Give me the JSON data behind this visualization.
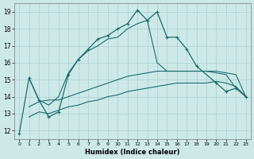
{
  "xlabel": "Humidex (Indice chaleur)",
  "xlim": [
    -0.5,
    23.5
  ],
  "ylim": [
    11.5,
    19.5
  ],
  "yticks": [
    12,
    13,
    14,
    15,
    16,
    17,
    18,
    19
  ],
  "xticks": [
    0,
    1,
    2,
    3,
    4,
    5,
    6,
    7,
    8,
    9,
    10,
    11,
    12,
    13,
    14,
    15,
    16,
    17,
    18,
    19,
    20,
    21,
    22,
    23
  ],
  "bg_color": "#cce9e8",
  "grid_color": "#aacfcf",
  "line_color": "#1a6b6b",
  "line1_x": [
    0,
    1,
    2,
    3,
    4,
    5,
    6,
    7,
    8,
    9,
    10,
    11,
    12,
    13,
    14,
    15,
    16,
    17,
    18,
    20,
    21,
    22,
    23
  ],
  "line1_y": [
    11.8,
    15.1,
    13.8,
    12.8,
    13.1,
    15.3,
    16.2,
    16.8,
    17.4,
    17.6,
    18.0,
    18.3,
    19.1,
    18.5,
    19.0,
    17.5,
    17.5,
    16.8,
    15.8,
    14.8,
    14.3,
    14.5,
    14.0
  ],
  "line2_x": [
    1,
    2,
    3,
    4,
    5,
    6,
    7,
    8,
    9,
    10,
    11,
    12,
    13,
    14,
    15,
    16,
    17,
    18,
    19,
    20,
    21,
    22,
    23
  ],
  "line2_y": [
    15.1,
    13.8,
    13.5,
    14.0,
    15.4,
    16.2,
    16.7,
    17.0,
    17.4,
    17.5,
    18.0,
    18.3,
    18.5,
    16.0,
    15.5,
    15.5,
    15.5,
    15.5,
    15.5,
    15.4,
    15.3,
    14.5,
    14.0
  ],
  "line3_x": [
    1,
    2,
    3,
    4,
    5,
    6,
    7,
    8,
    9,
    10,
    11,
    12,
    13,
    14,
    15,
    16,
    17,
    18,
    19,
    20,
    21,
    22,
    23
  ],
  "line3_y": [
    13.4,
    13.7,
    13.8,
    13.8,
    14.0,
    14.2,
    14.4,
    14.6,
    14.8,
    15.0,
    15.2,
    15.3,
    15.4,
    15.5,
    15.5,
    15.5,
    15.5,
    15.5,
    15.5,
    15.5,
    15.4,
    15.3,
    14.0
  ],
  "line4_x": [
    1,
    2,
    3,
    4,
    5,
    6,
    7,
    8,
    9,
    10,
    11,
    12,
    13,
    14,
    15,
    16,
    17,
    18,
    19,
    20,
    21,
    22,
    23
  ],
  "line4_y": [
    12.8,
    13.1,
    13.0,
    13.2,
    13.4,
    13.5,
    13.7,
    13.8,
    14.0,
    14.1,
    14.3,
    14.4,
    14.5,
    14.6,
    14.7,
    14.8,
    14.8,
    14.8,
    14.8,
    14.9,
    14.8,
    14.6,
    14.0
  ]
}
